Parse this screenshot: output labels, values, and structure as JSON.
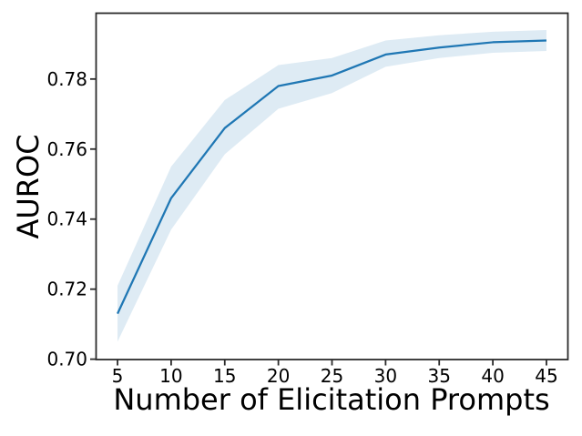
{
  "chart_data": {
    "type": "line",
    "title": "",
    "xlabel": "Number of Elicitation Prompts",
    "ylabel": "AUROC",
    "x": [
      5,
      10,
      15,
      20,
      25,
      30,
      35,
      40,
      45
    ],
    "series": [
      {
        "name": "AUROC",
        "values": [
          0.713,
          0.746,
          0.766,
          0.778,
          0.781,
          0.787,
          0.789,
          0.7905,
          0.791
        ]
      }
    ],
    "band_lower": [
      0.705,
      0.737,
      0.7585,
      0.7715,
      0.776,
      0.7835,
      0.786,
      0.7875,
      0.788
    ],
    "band_upper": [
      0.721,
      0.755,
      0.774,
      0.784,
      0.786,
      0.791,
      0.7925,
      0.7935,
      0.794
    ],
    "xlim": [
      3,
      47
    ],
    "ylim": [
      0.6999,
      0.7988
    ],
    "xticks": [
      5,
      10,
      15,
      20,
      25,
      30,
      35,
      40,
      45
    ],
    "xtick_labels": [
      "5",
      "10",
      "15",
      "20",
      "25",
      "30",
      "35",
      "40",
      "45"
    ],
    "yticks": [
      0.7,
      0.72,
      0.74,
      0.76,
      0.78
    ],
    "ytick_labels": [
      "0.70",
      "0.72",
      "0.74",
      "0.76",
      "0.78"
    ],
    "grid": false,
    "legend_position": "none",
    "colors": {
      "line": "#1f77b4",
      "band": "#1f77b4",
      "band_opacity": 0.15,
      "axis": "#2b2b2b",
      "text": "#000000"
    }
  }
}
